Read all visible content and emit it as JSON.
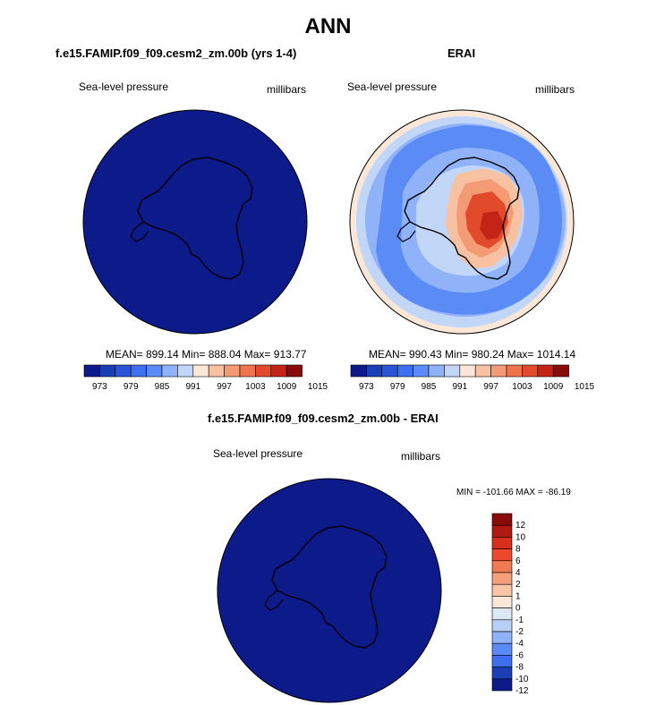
{
  "title": "ANN",
  "panels": [
    {
      "title": "f.e15.FAMIP.f09_f09.cesm2_zm.00b (yrs 1-4)",
      "variable": "Sea-level pressure",
      "units": "millibars",
      "stats": "MEAN= 899.14  Min= 888.04  Max= 913.77"
    },
    {
      "title": "ERAI",
      "variable": "Sea-level pressure",
      "units": "millibars",
      "stats": "MEAN= 990.43  Min= 980.24  Max= 1014.14"
    },
    {
      "title": "f.e15.FAMIP.f09_f09.cesm2_zm.00b - ERAI",
      "variable": "Sea-level pressure",
      "units": "millibars",
      "stats": "MIN = -101.66 MAX = -86.19"
    }
  ],
  "colorbar_h": {
    "colors": [
      "#0c1a8a",
      "#1a3fb4",
      "#2a55d6",
      "#3d6ff0",
      "#5b8cf5",
      "#8fb2f8",
      "#c2d6f7",
      "#fbe7d8",
      "#f8c1a2",
      "#f49b76",
      "#ef744e",
      "#e24a2c",
      "#c42318",
      "#8a0b0b"
    ],
    "labels": [
      "973",
      "979",
      "985",
      "991",
      "997",
      "1003",
      "1009",
      "1015"
    ]
  },
  "colorbar_v": {
    "colors": [
      "#8a0b0b",
      "#b01a12",
      "#d62f1c",
      "#ec4a2a",
      "#f07a52",
      "#f4a07a",
      "#f8c5a6",
      "#fbe7d8",
      "#dde8f7",
      "#b8cff6",
      "#8fb2f8",
      "#5b8cf5",
      "#3d6ff0",
      "#1a3fb4",
      "#0c1a8a"
    ],
    "labels": [
      "12",
      "10",
      "8",
      "6",
      "4",
      "2",
      "1",
      "0",
      "-1",
      "-2",
      "-4",
      "-6",
      "-8",
      "-10",
      "-12"
    ]
  },
  "map_colors": {
    "dark_blue": "#0c1a8a",
    "ocean_light": "#c2d6f7",
    "mid_blue": "#5b8cf5",
    "deep_blue": "#2a55d6",
    "warm_light": "#fbe7d8",
    "warm_mid": "#f49b76",
    "warm_strong": "#e24a2c",
    "warm_deep": "#c42318"
  }
}
